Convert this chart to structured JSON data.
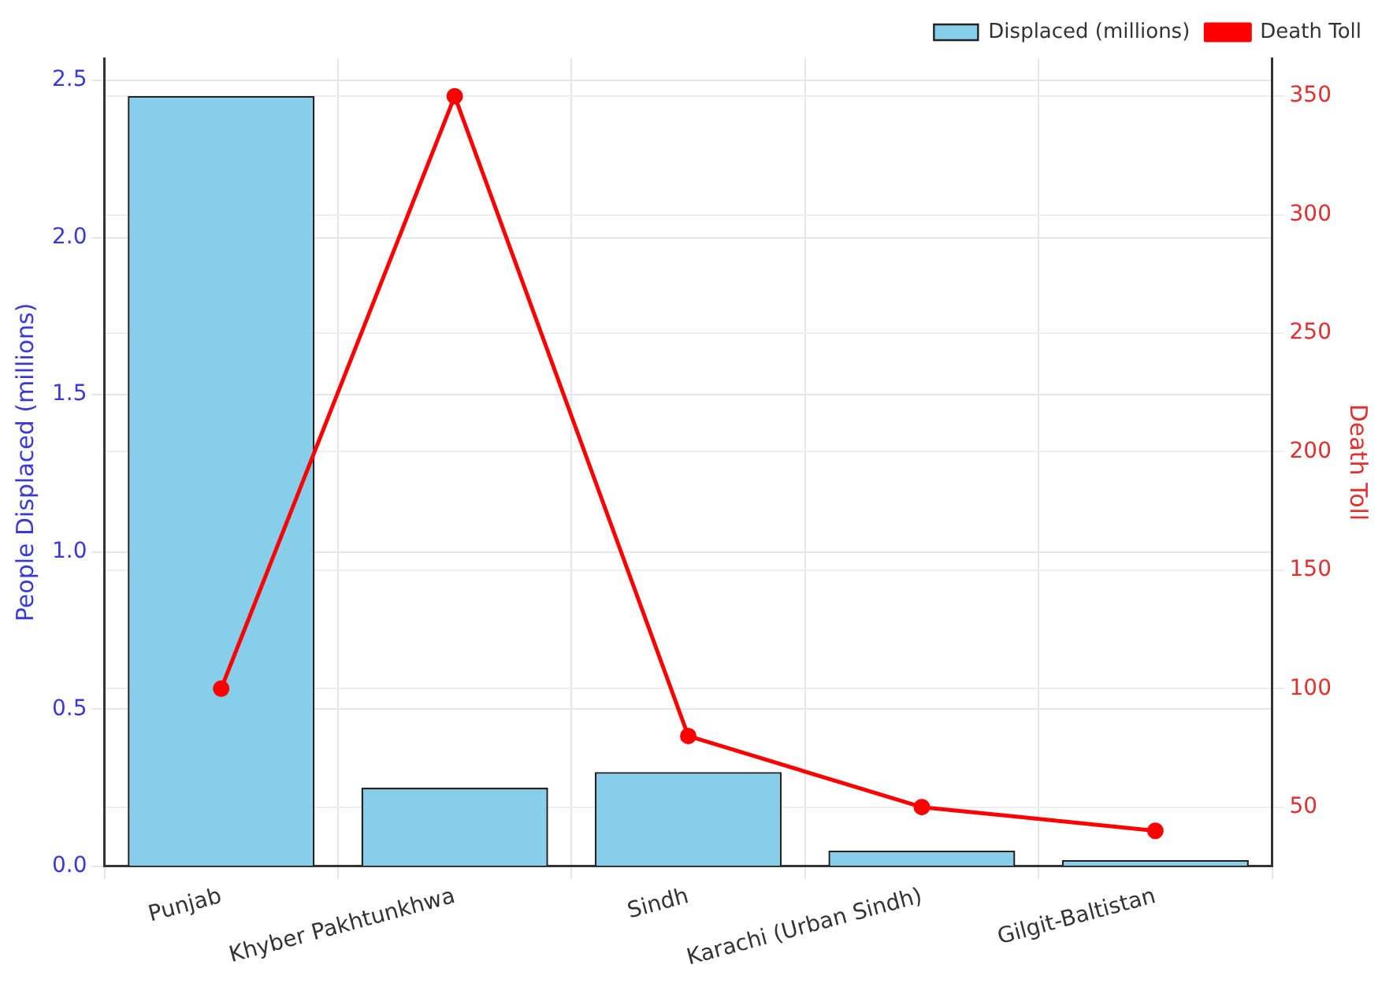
{
  "chart_data": {
    "type": "bar",
    "categories": [
      "Punjab",
      "Khyber Pakhtunkhwa",
      "Sindh",
      "Karachi (Urban Sindh)",
      "Gilgit-Baltistan"
    ],
    "series": [
      {
        "name": "Displaced (millions)",
        "color": "#87ceeb",
        "values": [
          2.45,
          0.25,
          0.3,
          0.05,
          0.02
        ]
      },
      {
        "name": "Death Toll",
        "type": "line",
        "axis": "y2",
        "color": "#ff0000",
        "values": [
          100,
          350,
          80,
          50,
          40
        ]
      }
    ],
    "ylabel": "People Displaced (millions)",
    "y2label": "Death Toll",
    "ylim": [
      0,
      2.57
    ],
    "yticks": [
      {
        "value": 0,
        "label": "0.0"
      },
      0.5,
      {
        "value": 1,
        "label": "1.0"
      },
      1.5,
      {
        "value": 2,
        "label": "2.0"
      },
      2.5
    ],
    "y2lim": [
      25,
      366
    ],
    "y2ticks": [
      50,
      100,
      150,
      200,
      250,
      300,
      350
    ],
    "grid": true,
    "legend": "top right",
    "marker": "circle"
  }
}
